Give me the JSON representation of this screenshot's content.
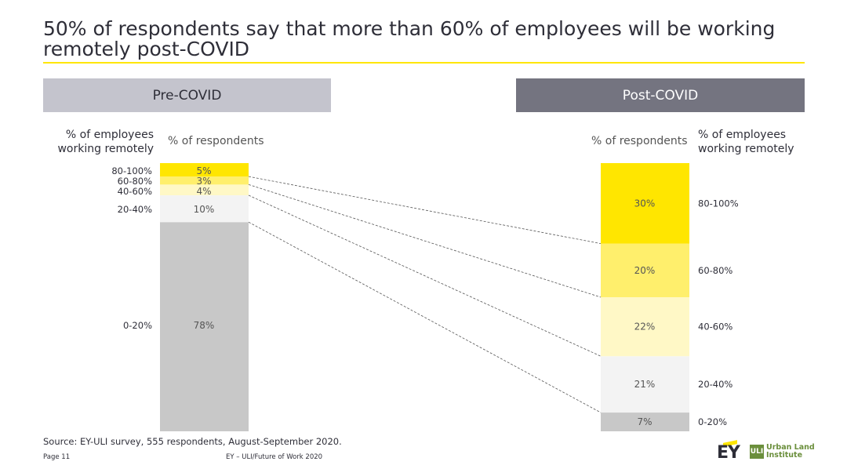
{
  "title": "50% of respondents say that more than 60% of employees will be working remotely post-COVID",
  "panels": {
    "pre": {
      "heading": "Pre-COVID"
    },
    "post": {
      "heading": "Post-COVID"
    }
  },
  "axis": {
    "employees_title_line1": "% of employees",
    "employees_title_line2": "working remotely",
    "respondents_title": "% of respondents"
  },
  "chart_data": {
    "type": "bar",
    "title": "50% of respondents say that more than 60% of employees will be working remotely post-COVID",
    "categories": [
      "Pre-COVID",
      "Post-COVID"
    ],
    "stack_order_bottom_to_top": [
      "0-20%",
      "20-40%",
      "40-60%",
      "60-80%",
      "80-100%"
    ],
    "series": [
      {
        "name": "0-20%",
        "values": [
          78,
          7
        ],
        "color": "#c8c8c8"
      },
      {
        "name": "20-40%",
        "values": [
          10,
          21
        ],
        "color": "#f3f3f3"
      },
      {
        "name": "40-60%",
        "values": [
          4,
          22
        ],
        "color": "#fff8c6"
      },
      {
        "name": "60-80%",
        "values": [
          3,
          20
        ],
        "color": "#ffef6c"
      },
      {
        "name": "80-100%",
        "values": [
          5,
          30
        ],
        "color": "#ffe600"
      }
    ],
    "value_labels": {
      "pre": {
        "0-20%": "78%",
        "20-40%": "10%",
        "40-60%": "4%",
        "60-80%": "3%",
        "80-100%": "5%"
      },
      "post": {
        "0-20%": "7%",
        "20-40%": "21%",
        "40-60%": "22%",
        "60-80%": "20%",
        "80-100%": "30%"
      }
    },
    "xlabel": "% of respondents",
    "ylabel": "% of employees working remotely",
    "ylim": [
      0,
      100
    ]
  },
  "footer": {
    "source": "Source: EY-ULI survey, 555 respondents, August-September 2020.",
    "page": "Page 11",
    "doc": "EY – ULI/Future of Work 2020"
  },
  "logos": {
    "ey": "EY",
    "uli_mark": "ULI",
    "uli_line1": "Urban Land",
    "uli_line2": "Institute"
  }
}
